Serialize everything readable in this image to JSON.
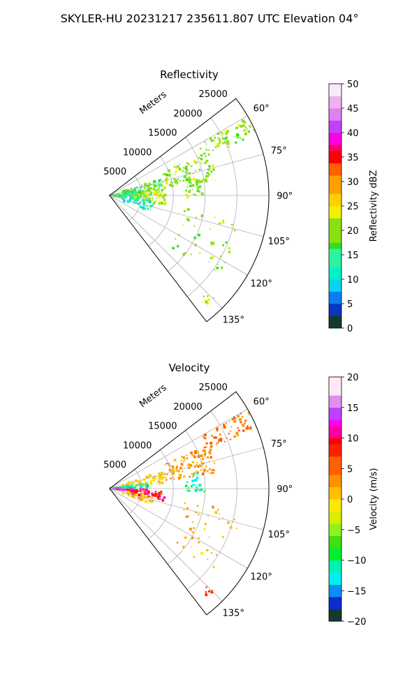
{
  "suptitle": "SKYLER-HU  20231217  235611.807 UTC Elevation 04°",
  "chart_data": [
    {
      "type": "polar-sector",
      "title": "Reflectivity",
      "radial_label": "Meters",
      "radial_ticks": [
        5000,
        10000,
        15000,
        20000,
        25000
      ],
      "radial_tick_labels": [
        "5000",
        "10000",
        "15000",
        "20000",
        "25000"
      ],
      "rlim": [
        0,
        25000
      ],
      "theta_range_deg": [
        52.5,
        142.5
      ],
      "theta_ticks_deg": [
        60,
        75,
        90,
        105,
        120,
        135
      ],
      "theta_tick_labels": [
        "60°",
        "75°",
        "90°",
        "105°",
        "120°",
        "135°"
      ],
      "grid": true,
      "colorbar": {
        "label": "Reflectivity dBZ",
        "range": [
          0,
          50
        ],
        "ticks": [
          0,
          5,
          10,
          15,
          20,
          25,
          30,
          35,
          40,
          45,
          50
        ],
        "tick_labels": [
          "0",
          "5",
          "10",
          "15",
          "20",
          "25",
          "30",
          "35",
          "40",
          "45",
          "50"
        ],
        "stops": [
          [
            0,
            "#0b1a6a"
          ],
          [
            3,
            "#123b2e"
          ],
          [
            5,
            "#0a35c0"
          ],
          [
            7,
            "#0a7ef0"
          ],
          [
            10,
            "#0ad2f0"
          ],
          [
            13,
            "#00f2c8"
          ],
          [
            16,
            "#2ff2a0"
          ],
          [
            18,
            "#30e020"
          ],
          [
            22,
            "#8ae010"
          ],
          [
            25,
            "#f0f000"
          ],
          [
            28,
            "#ffd000"
          ],
          [
            31,
            "#ffa000"
          ],
          [
            34,
            "#ff6000"
          ],
          [
            36,
            "#ff0000"
          ],
          [
            38,
            "#ff0060"
          ],
          [
            40,
            "#ff00e0"
          ],
          [
            42,
            "#c040ff"
          ],
          [
            45,
            "#e080f0"
          ],
          [
            48,
            "#f0b0f0"
          ],
          [
            50,
            "#fbe8fb"
          ]
        ]
      },
      "echo_regions": [
        {
          "theta": [
            60,
            68
          ],
          "r": [
            16000,
            25000
          ],
          "value": 20,
          "density": 0.55
        },
        {
          "theta": [
            66,
            82
          ],
          "r": [
            9000,
            17000
          ],
          "value": 20,
          "density": 0.5
        },
        {
          "theta": [
            72,
            90
          ],
          "r": [
            2000,
            9000
          ],
          "value": 18,
          "density": 0.6
        },
        {
          "theta": [
            80,
            95
          ],
          "r": [
            0,
            5000
          ],
          "value": 15,
          "density": 0.8
        },
        {
          "theta": [
            85,
            100
          ],
          "r": [
            4000,
            9000
          ],
          "value": 22,
          "density": 0.55
        },
        {
          "theta": [
            95,
            112
          ],
          "r": [
            2000,
            7000
          ],
          "value": 12,
          "density": 0.35
        },
        {
          "theta": [
            80,
            92
          ],
          "r": [
            12000,
            15000
          ],
          "value": 20,
          "density": 0.5
        },
        {
          "theta": [
            100,
            130
          ],
          "r": [
            12000,
            21000
          ],
          "value": 20,
          "density": 0.1
        },
        {
          "theta": [
            134,
            138
          ],
          "r": [
            21500,
            23000
          ],
          "value": 21,
          "density": 0.8
        }
      ]
    },
    {
      "type": "polar-sector",
      "title": "Velocity",
      "radial_label": "Meters",
      "radial_ticks": [
        5000,
        10000,
        15000,
        20000,
        25000
      ],
      "radial_tick_labels": [
        "5000",
        "10000",
        "15000",
        "20000",
        "25000"
      ],
      "rlim": [
        0,
        25000
      ],
      "theta_range_deg": [
        52.5,
        142.5
      ],
      "theta_ticks_deg": [
        60,
        75,
        90,
        105,
        120,
        135
      ],
      "theta_tick_labels": [
        "60°",
        "75°",
        "90°",
        "105°",
        "120°",
        "135°"
      ],
      "grid": true,
      "colorbar": {
        "label": "Velocity (m/s)",
        "range": [
          -20,
          20
        ],
        "ticks": [
          -20,
          -15,
          -10,
          -5,
          0,
          5,
          10,
          15,
          20
        ],
        "tick_labels": [
          "−20",
          "−15",
          "−10",
          "−5",
          "0",
          "5",
          "10",
          "15",
          "20"
        ],
        "stops": [
          [
            -20,
            "#0b1a6a"
          ],
          [
            -18,
            "#123b2e"
          ],
          [
            -16,
            "#0a2cd0"
          ],
          [
            -14,
            "#0a8ef0"
          ],
          [
            -12,
            "#00f0f0"
          ],
          [
            -10,
            "#00f0b0"
          ],
          [
            -8,
            "#00f030"
          ],
          [
            -6,
            "#40e010"
          ],
          [
            -4,
            "#90f020"
          ],
          [
            -2,
            "#d8f000"
          ],
          [
            0,
            "#ffe800"
          ],
          [
            2,
            "#ffc000"
          ],
          [
            4,
            "#ff9000"
          ],
          [
            7,
            "#ff6000"
          ],
          [
            9,
            "#ff2000"
          ],
          [
            10,
            "#ff0000"
          ],
          [
            12,
            "#ff00a0"
          ],
          [
            13,
            "#ff00ff"
          ],
          [
            15,
            "#c040ff"
          ],
          [
            17,
            "#e090f0"
          ],
          [
            20,
            "#fbe8fb"
          ]
        ]
      },
      "echo_regions": [
        {
          "theta": [
            60,
            68
          ],
          "r": [
            16000,
            25000
          ],
          "value": 4,
          "density": 0.55
        },
        {
          "theta": [
            66,
            82
          ],
          "r": [
            9000,
            17000
          ],
          "value": 3,
          "density": 0.5
        },
        {
          "theta": [
            72,
            85
          ],
          "r": [
            2000,
            9000
          ],
          "value": 0,
          "density": 0.6
        },
        {
          "theta": [
            82,
            90
          ],
          "r": [
            0,
            6000
          ],
          "value": -11,
          "density": 0.75
        },
        {
          "theta": [
            90,
            96
          ],
          "r": [
            0,
            6000
          ],
          "value": 13,
          "density": 0.75
        },
        {
          "theta": [
            93,
            103
          ],
          "r": [
            3000,
            9000
          ],
          "value": 9,
          "density": 0.7
        },
        {
          "theta": [
            100,
            112
          ],
          "r": [
            2000,
            7000
          ],
          "value": 1,
          "density": 0.45
        },
        {
          "theta": [
            80,
            92
          ],
          "r": [
            12000,
            15000
          ],
          "value": -11,
          "density": 0.5
        },
        {
          "theta": [
            100,
            130
          ],
          "r": [
            12000,
            21000
          ],
          "value": 2,
          "density": 0.1
        },
        {
          "theta": [
            134,
            138
          ],
          "r": [
            21500,
            23000
          ],
          "value": 9,
          "density": 0.8
        }
      ]
    }
  ]
}
